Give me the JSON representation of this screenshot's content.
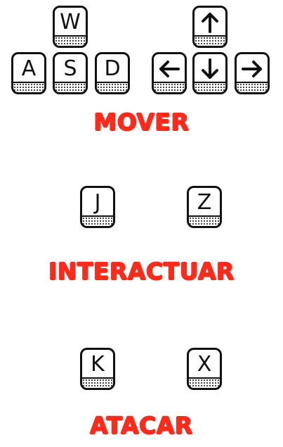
{
  "move": {
    "title": "MOVER",
    "keys": {
      "w": "W",
      "a": "A",
      "s": "S",
      "d": "D"
    },
    "arrow_icons": [
      "arrow-up-icon",
      "arrow-left-icon",
      "arrow-down-icon",
      "arrow-right-icon"
    ]
  },
  "interact": {
    "title": "INTERACTUAR",
    "keys": {
      "primary": "J",
      "alternate": "Z"
    }
  },
  "attack": {
    "title": "ATACAR",
    "keys": {
      "primary": "K",
      "alternate": "X"
    }
  },
  "colors": {
    "title": "#ff2a1a",
    "key_outline": "#111111",
    "background": "#ffffff"
  }
}
